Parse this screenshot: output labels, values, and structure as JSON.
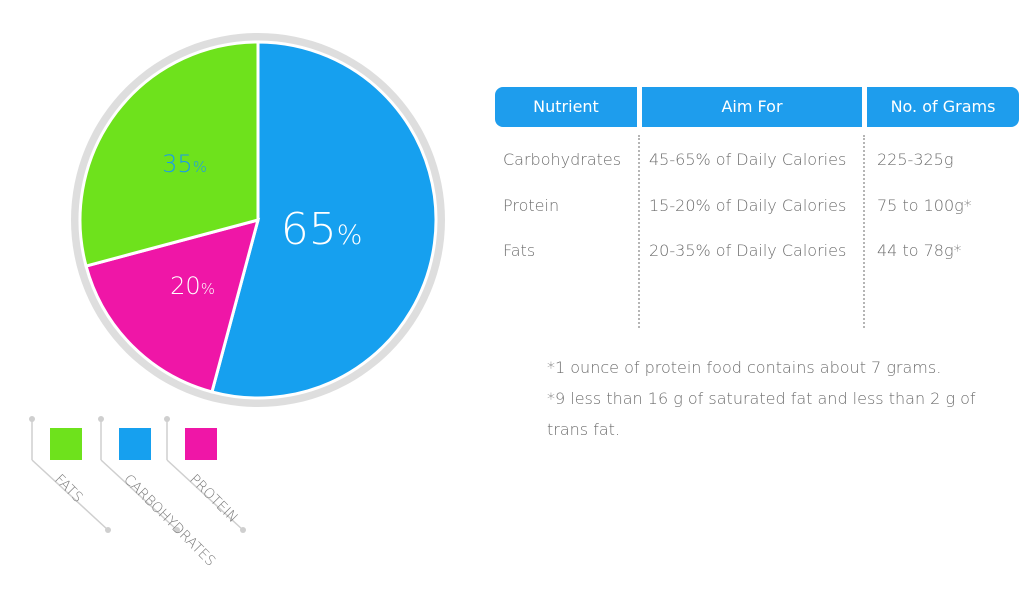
{
  "chart_data": {
    "type": "pie",
    "slices": [
      {
        "name": "CARBOHYDRATES",
        "value": 65,
        "label": "65",
        "unit": "%",
        "color": "#16a0ef",
        "label_color": "#ffffff"
      },
      {
        "name": "PROTEIN",
        "value": 20,
        "label": "20",
        "unit": "%",
        "color": "#ef16a7",
        "label_color": "#ffffff"
      },
      {
        "name": "FATS",
        "value": 35,
        "label": "35",
        "unit": "%",
        "color": "#6ee21c",
        "label_color": "#1a9aee"
      }
    ],
    "legend": [
      {
        "name": "FATS",
        "color": "#6ee21c"
      },
      {
        "name": "CARBOHYDRATES",
        "color": "#16a0ef"
      },
      {
        "name": "PROTEIN",
        "color": "#ef16a7"
      }
    ],
    "ring_color": "#dedede"
  },
  "table": {
    "headers": [
      "Nutrient",
      "Aim For",
      "No. of Grams"
    ],
    "rows": [
      [
        "Carbohydrates",
        "45-65% of Daily Calories",
        "225-325g"
      ],
      [
        "Protein",
        "15-20% of Daily Calories",
        "75 to 100g*"
      ],
      [
        "Fats",
        "20-35% of Daily Calories",
        "44 to 78g*"
      ]
    ],
    "header_color": "#1e9ded"
  },
  "notes": [
    "*1 ounce of protein food contains about 7 grams.",
    "*9 less than 16 g of saturated fat and less than 2 g of trans fat."
  ]
}
